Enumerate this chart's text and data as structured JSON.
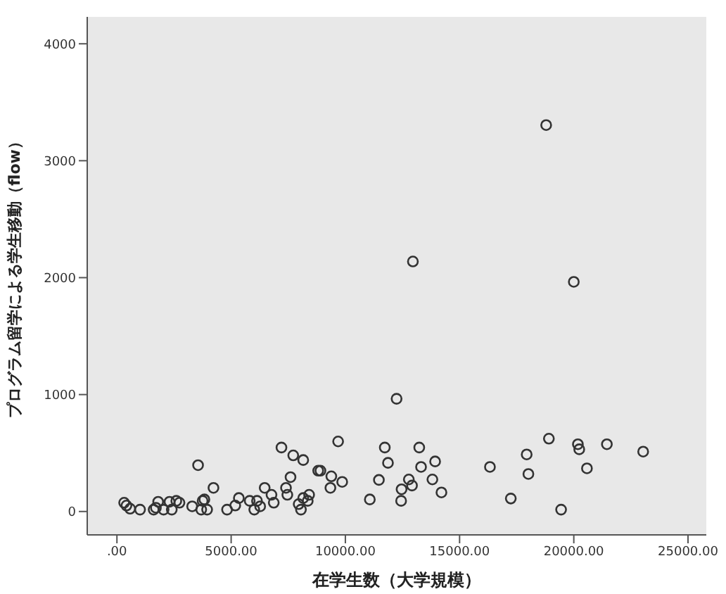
{
  "chart_data": {
    "type": "scatter",
    "xlabel": "在学生数（大学規模）",
    "ylabel": "プログラム留学による学生移動（flow）",
    "xlim": [
      -1300,
      25800
    ],
    "ylim": [
      -200,
      4230
    ],
    "xticks": [
      {
        "value": 0,
        "label": ".00"
      },
      {
        "value": 5000,
        "label": "5000.00"
      },
      {
        "value": 10000,
        "label": "10000.00"
      },
      {
        "value": 15000,
        "label": "15000.00"
      },
      {
        "value": 20000,
        "label": "20000.00"
      },
      {
        "value": 25000,
        "label": "25000.00"
      }
    ],
    "yticks": [
      0,
      1000,
      2000,
      3000,
      4000
    ],
    "grid": false,
    "marker": "circle",
    "series": [
      {
        "color": "#333333",
        "x": [
          316,
          417,
          577,
          1012,
          1706,
          1805,
          1607,
          2043,
          2302,
          2401,
          2599,
          2738,
          3294,
          3552,
          3690,
          3750,
          3829,
          3948,
          4226,
          4821,
          5179,
          5337,
          5813,
          6012,
          6131,
          6270,
          6468,
          6766,
          6865,
          7202,
          7401,
          7460,
          7599,
          7718,
          7956,
          8056,
          8155,
          8155,
          8353,
          8413,
          8810,
          8909,
          9345,
          9385,
          9683,
          9861,
          11071,
          11468,
          11726,
          11865,
          12242,
          12460,
          12440,
          12778,
          12917,
          13234,
          13313,
          13810,
          13929,
          14206,
          16329,
          17242,
          17937,
          18012,
          18909,
          19444,
          20179,
          20238,
          20575,
          21448,
          23036,
          18790,
          12956,
          20000
        ],
        "values": [
          75,
          51,
          24,
          16,
          32,
          83,
          16,
          16,
          83,
          16,
          91,
          75,
          44,
          396,
          16,
          91,
          103,
          16,
          202,
          16,
          51,
          115,
          91,
          16,
          91,
          44,
          202,
          143,
          75,
          547,
          202,
          143,
          294,
          480,
          63,
          16,
          440,
          115,
          91,
          143,
          349,
          349,
          202,
          301,
          599,
          253,
          103,
          270,
          547,
          416,
          964,
          190,
          91,
          274,
          222,
          547,
          381,
          274,
          428,
          163,
          381,
          111,
          488,
          321,
          623,
          16,
          575,
          532,
          369,
          575,
          512,
          3305,
          2138,
          1964
        ]
      }
    ]
  }
}
